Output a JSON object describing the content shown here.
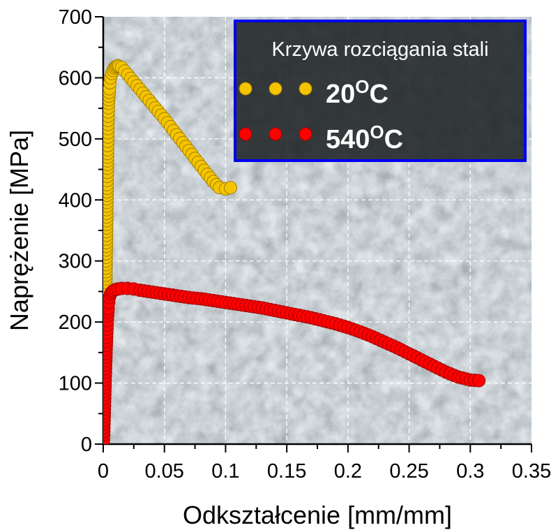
{
  "colors": {
    "series_20C": "#f5c400",
    "series_20C_edge": "#a07f00",
    "series_540C": "#ff0000",
    "series_540C_edge": "#a00000",
    "legend_border": "#0000ee",
    "legend_bg": "#1e2224",
    "background": "#6e7a80"
  },
  "chart_data": {
    "type": "scatter",
    "xlabel": "Odkształcenie [mm/mm]",
    "ylabel": "Naprężenie [MPa]",
    "xlim": [
      0,
      0.35
    ],
    "ylim": [
      0,
      700
    ],
    "xticks": [
      "0",
      "0.05",
      "0.1",
      "0.15",
      "0.2",
      "0.25",
      "0.3",
      "0.35"
    ],
    "yticks": [
      "0",
      "100",
      "200",
      "300",
      "400",
      "500",
      "600",
      "700"
    ],
    "grid": true,
    "legend": {
      "title": "Krzywa rozciągania stali",
      "placement": "top-right",
      "entries": [
        {
          "base": "20",
          "sup": "O",
          "suffix": "C"
        },
        {
          "base": "540",
          "sup": "O",
          "suffix": "C"
        }
      ]
    },
    "series": [
      {
        "name": "20oC",
        "x": [
          0.0,
          0.0003,
          0.0006,
          0.0009,
          0.0012,
          0.0015,
          0.0018,
          0.002,
          0.0022,
          0.0024,
          0.0026,
          0.0028,
          0.003,
          0.0032,
          0.0034,
          0.0036,
          0.0038,
          0.004,
          0.0043,
          0.0046,
          0.005,
          0.0055,
          0.006,
          0.007,
          0.008,
          0.009,
          0.01,
          0.011,
          0.012,
          0.013,
          0.015,
          0.02,
          0.025,
          0.03,
          0.035,
          0.04,
          0.045,
          0.05,
          0.055,
          0.06,
          0.065,
          0.07,
          0.075,
          0.08,
          0.085,
          0.09,
          0.095,
          0.1,
          0.104
        ],
        "y": [
          0,
          25,
          55,
          90,
          130,
          170,
          205,
          235,
          265,
          300,
          330,
          360,
          390,
          425,
          452,
          482,
          510,
          537,
          558,
          570,
          582,
          592,
          600,
          607,
          612,
          616,
          618,
          619,
          620,
          619,
          617,
          605,
          593,
          581,
          569,
          557,
          545,
          533,
          520,
          507,
          494,
          481,
          468,
          455,
          442,
          430,
          420,
          418,
          420
        ]
      },
      {
        "name": "540oC",
        "x": [
          0.0,
          0.0004,
          0.0008,
          0.0012,
          0.0016,
          0.002,
          0.0024,
          0.0028,
          0.0032,
          0.0036,
          0.004,
          0.0045,
          0.005,
          0.006,
          0.007,
          0.008,
          0.01,
          0.012,
          0.015,
          0.02,
          0.025,
          0.03,
          0.04,
          0.05,
          0.06,
          0.07,
          0.08,
          0.09,
          0.1,
          0.11,
          0.12,
          0.13,
          0.14,
          0.15,
          0.16,
          0.17,
          0.18,
          0.19,
          0.2,
          0.21,
          0.22,
          0.23,
          0.24,
          0.25,
          0.26,
          0.27,
          0.28,
          0.29,
          0.3,
          0.307
        ],
        "y": [
          0,
          15,
          45,
          75,
          105,
          130,
          155,
          175,
          195,
          210,
          222,
          232,
          240,
          246,
          249,
          251,
          253,
          254,
          255,
          255,
          254,
          252,
          249,
          246,
          243,
          240,
          238,
          235,
          232,
          229,
          226,
          223,
          219,
          215,
          211,
          207,
          202,
          197,
          191,
          184,
          176,
          167,
          158,
          148,
          138,
          128,
          118,
          110,
          105,
          104
        ]
      }
    ]
  }
}
